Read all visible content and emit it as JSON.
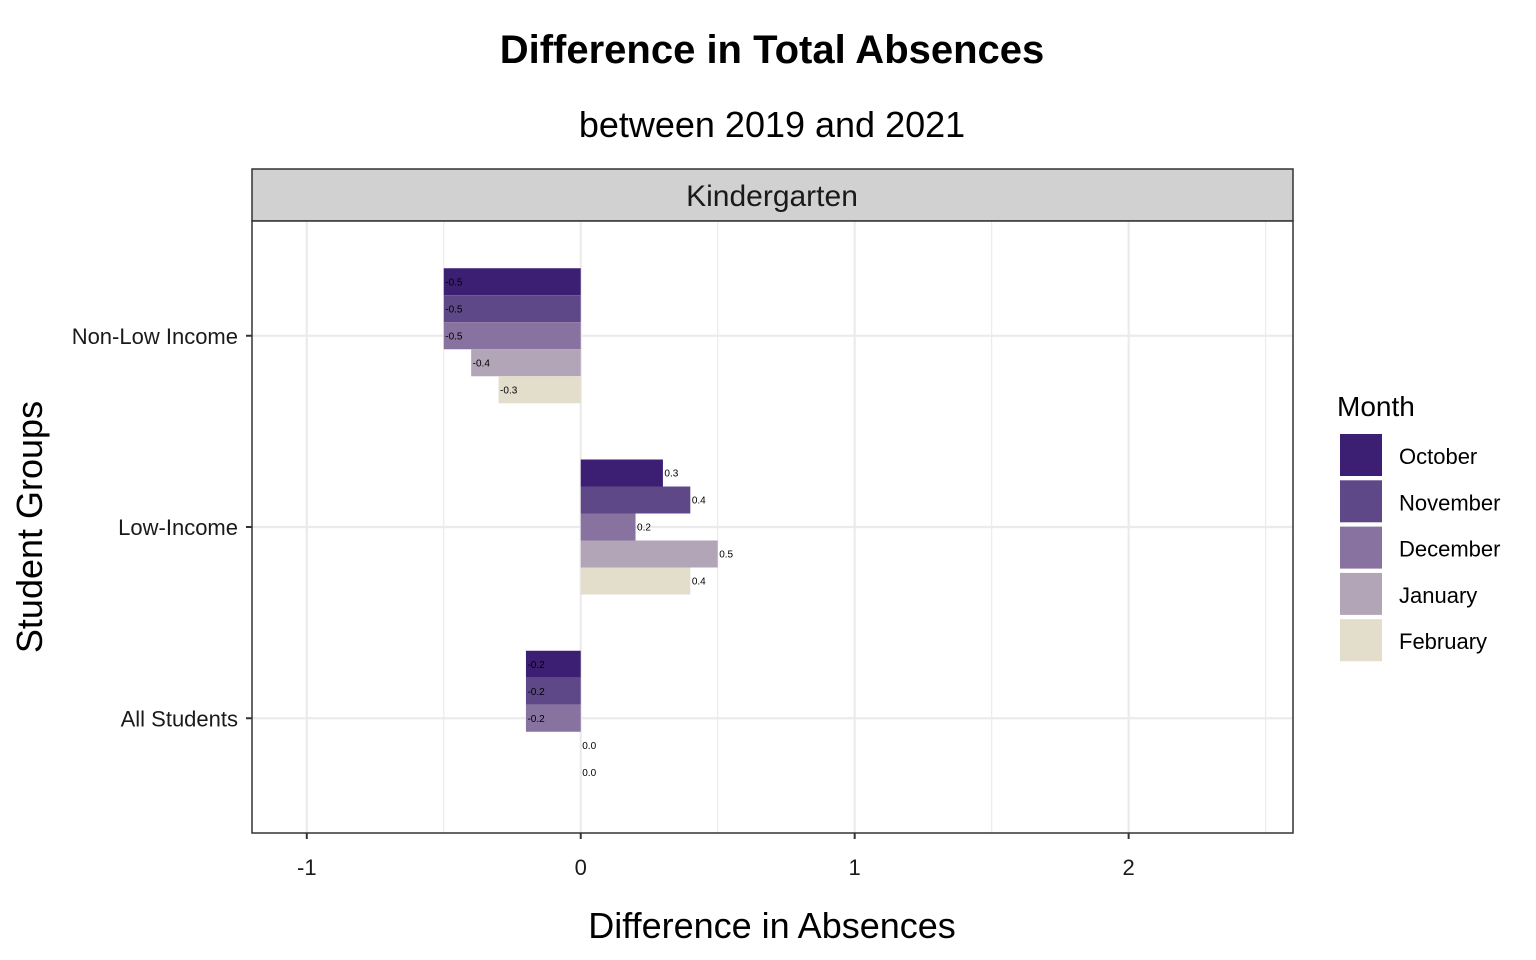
{
  "chart_data": {
    "type": "bar",
    "orientation": "horizontal",
    "title": "Difference in Total Absences",
    "subtitle": "between 2019 and 2021",
    "facet": "Kindergarten",
    "xlabel": "Difference in Absences",
    "ylabel": "Student Groups",
    "xlim": [
      -1.2,
      2.6
    ],
    "xticks": [
      -1,
      0,
      1,
      2
    ],
    "xtick_labels": [
      "-1",
      "0",
      "1",
      "2"
    ],
    "categories": [
      "Non-Low Income",
      "Low-Income",
      "All Students"
    ],
    "series": [
      {
        "name": "October",
        "color": "#3c1f73",
        "values": [
          -0.5,
          0.3,
          -0.2
        ],
        "labels": [
          "-0.5",
          "0.3",
          "-0.2"
        ]
      },
      {
        "name": "November",
        "color": "#5e4887",
        "values": [
          -0.5,
          0.4,
          -0.2
        ],
        "labels": [
          "-0.5",
          "0.4",
          "-0.2"
        ]
      },
      {
        "name": "December",
        "color": "#8872a0",
        "values": [
          -0.5,
          0.2,
          -0.2
        ],
        "labels": [
          "-0.5",
          "0.2",
          "-0.2"
        ]
      },
      {
        "name": "January",
        "color": "#b3a5b8",
        "values": [
          -0.4,
          0.5,
          0.0
        ],
        "labels": [
          "-0.4",
          "0.5",
          "0.0"
        ]
      },
      {
        "name": "February",
        "color": "#e3ddcb",
        "values": [
          -0.3,
          0.4,
          0.0
        ],
        "labels": [
          "-0.3",
          "0.4",
          "0.0"
        ]
      }
    ],
    "legend": {
      "title": "Month",
      "position": "right"
    },
    "grid": true,
    "theme": "bw"
  }
}
